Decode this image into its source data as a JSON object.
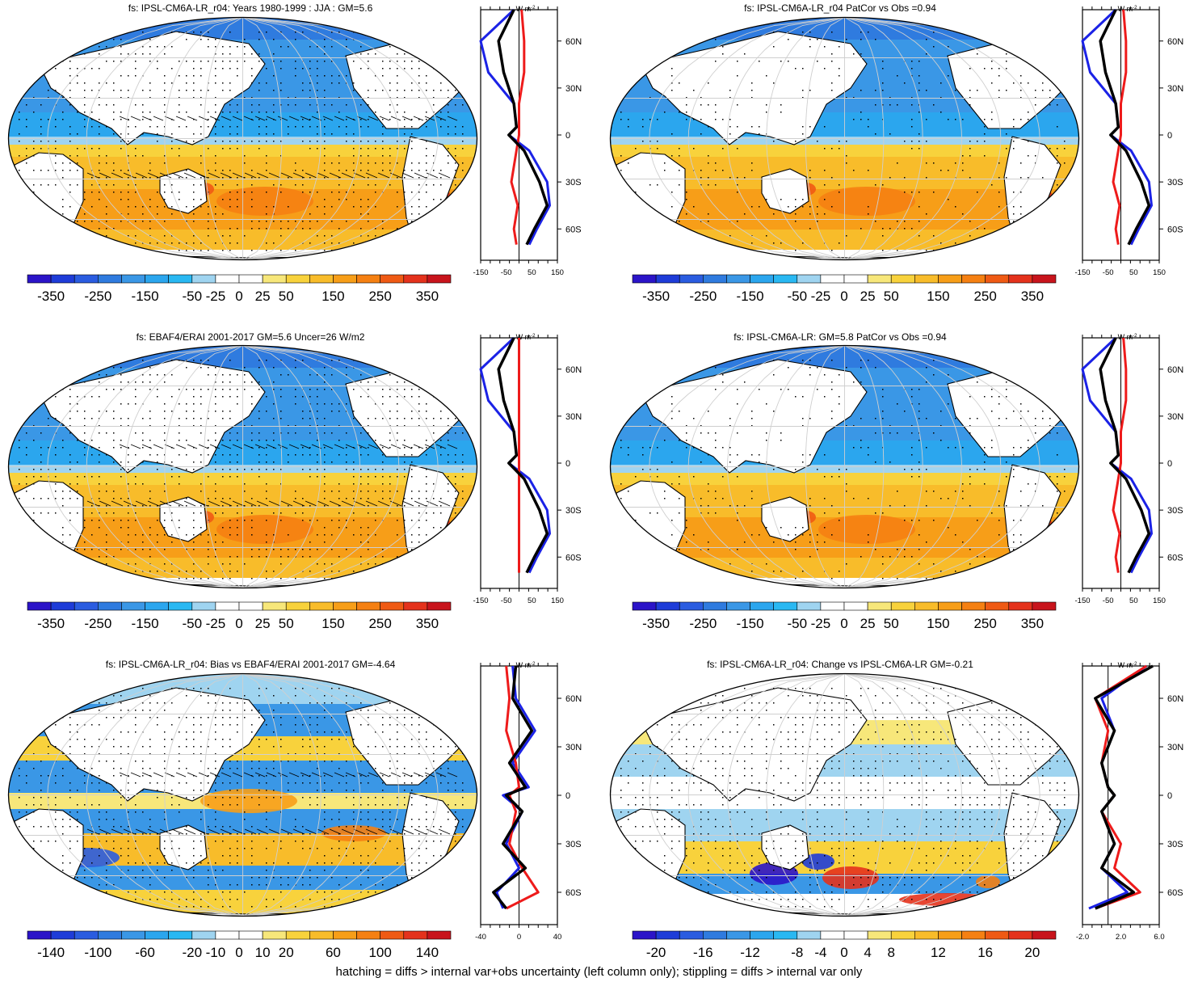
{
  "colors": {
    "div_14": [
      "#2b14c8",
      "#1e3cd8",
      "#2a5ce0",
      "#2f7bdf",
      "#3a97e6",
      "#2ba6ee",
      "#29b8f2",
      "#9fd4f0",
      "#ffffff",
      "#ffffff",
      "#f7e77a",
      "#f8d23c",
      "#f8bc2a",
      "#f79e18",
      "#f58012",
      "#ef5a14",
      "#e4321c",
      "#c8141c"
    ],
    "ocean_cold": "#3a97e6",
    "ocean_warm": "#f8bc2a",
    "land": "#ffffff",
    "profile_model": "#000000",
    "profile_obs": "#1b22e6",
    "profile_diff": "#ee1b1b"
  },
  "panels": [
    {
      "id": "p1",
      "title": "fs: IPSL-CM6A-LR_r04: Years 1980-1999 : JJA : GM=5.6",
      "colorbar_labels": [
        "-350",
        "-250",
        "-150",
        "-50",
        "-25",
        "0",
        "25",
        "50",
        "150",
        "250",
        "350"
      ],
      "profile_xticks": [
        "-150",
        "-50",
        "50",
        "150"
      ],
      "profile_units": "W m-2",
      "profile_units_base": "W m",
      "profile_units_exp": "-2",
      "lat_ticks": [
        "60N",
        "30N",
        "0",
        "30S",
        "60S"
      ]
    },
    {
      "id": "p2",
      "title": "fs: IPSL-CM6A-LR_r04 PatCor vs Obs =0.94",
      "colorbar_labels": [
        "-350",
        "-250",
        "-150",
        "-50",
        "-25",
        "0",
        "25",
        "50",
        "150",
        "250",
        "350"
      ],
      "profile_xticks": [
        "-150",
        "-50",
        "50",
        "150"
      ],
      "profile_units_base": "W m",
      "profile_units_exp": "-2",
      "lat_ticks": [
        "60N",
        "30N",
        "0",
        "30S",
        "60S"
      ]
    },
    {
      "id": "p3",
      "title": "fs: EBAF4/ERAI 2001-2017 GM=5.6 Uncer=26 W/m2",
      "colorbar_labels": [
        "-350",
        "-250",
        "-150",
        "-50",
        "-25",
        "0",
        "25",
        "50",
        "150",
        "250",
        "350"
      ],
      "profile_xticks": [
        "-150",
        "-50",
        "50",
        "150"
      ],
      "profile_units_base": "W m",
      "profile_units_exp": "-2",
      "lat_ticks": [
        "60N",
        "30N",
        "0",
        "30S",
        "60S"
      ]
    },
    {
      "id": "p4",
      "title": "fs: IPSL-CM6A-LR: GM=5.8 PatCor vs Obs =0.94",
      "colorbar_labels": [
        "-350",
        "-250",
        "-150",
        "-50",
        "-25",
        "0",
        "25",
        "50",
        "150",
        "250",
        "350"
      ],
      "profile_xticks": [
        "-150",
        "-50",
        "50",
        "150"
      ],
      "profile_units_base": "W m",
      "profile_units_exp": "-2",
      "lat_ticks": [
        "60N",
        "30N",
        "0",
        "30S",
        "60S"
      ]
    },
    {
      "id": "p5",
      "title": "fs: IPSL-CM6A-LR_r04: Bias vs EBAF4/ERAI 2001-2017 GM=-4.64",
      "colorbar_labels": [
        "-140",
        "-100",
        "-60",
        "-20",
        "-10",
        "0",
        "10",
        "20",
        "60",
        "100",
        "140"
      ],
      "profile_xticks": [
        "-40",
        "0",
        "40"
      ],
      "profile_units_base": "W m",
      "profile_units_exp": "-2",
      "lat_ticks": [
        "60N",
        "30N",
        "0",
        "30S",
        "60S"
      ]
    },
    {
      "id": "p6",
      "title": "fs: IPSL-CM6A-LR_r04: Change vs IPSL-CM6A-LR GM=-0.21",
      "colorbar_labels": [
        "-20",
        "-16",
        "-12",
        "-8",
        "-4",
        "0",
        "4",
        "8",
        "12",
        "16",
        "20"
      ],
      "profile_xticks": [
        "-2.0",
        "2.0",
        "6.0"
      ],
      "profile_units_base": "W m",
      "profile_units_exp": "-2",
      "lat_ticks": [
        "60N",
        "30N",
        "0",
        "30S",
        "60S"
      ]
    }
  ],
  "footer": "hatching = diffs > internal var+obs uncertainty (left column only); stippling = diffs > internal var only",
  "chart_data": [
    {
      "type": "heatmap",
      "title": "fs: IPSL-CM6A-LR_r04: Years 1980-1999 : JJA : GM=5.6",
      "colorbar": [
        -350,
        -250,
        -150,
        -50,
        -25,
        0,
        25,
        50,
        150,
        250,
        350
      ],
      "zonal_profile": {
        "lat": [
          80,
          60,
          40,
          20,
          5,
          0,
          -10,
          -30,
          -45,
          -60,
          -70
        ],
        "model": [
          -20,
          -80,
          -60,
          -20,
          -10,
          -40,
          20,
          80,
          110,
          60,
          30
        ],
        "obs": [
          -20,
          -150,
          -120,
          -20,
          -10,
          -40,
          40,
          110,
          120,
          70,
          40
        ],
        "diff": [
          10,
          20,
          20,
          0,
          0,
          0,
          -10,
          -30,
          -5,
          -20,
          -10
        ]
      }
    },
    {
      "type": "heatmap",
      "title": "fs: IPSL-CM6A-LR_r04 PatCor vs Obs =0.94",
      "colorbar": [
        -350,
        -250,
        -150,
        -50,
        -25,
        0,
        25,
        50,
        150,
        250,
        350
      ]
    },
    {
      "type": "heatmap",
      "title": "fs: EBAF4/ERAI 2001-2017 GM=5.6 Uncer=26 W/m2",
      "colorbar": [
        -350,
        -250,
        -150,
        -50,
        -25,
        0,
        25,
        50,
        150,
        250,
        350
      ]
    },
    {
      "type": "heatmap",
      "title": "fs: IPSL-CM6A-LR: GM=5.8 PatCor vs Obs =0.94",
      "colorbar": [
        -350,
        -250,
        -150,
        -50,
        -25,
        0,
        25,
        50,
        150,
        250,
        350
      ]
    },
    {
      "type": "heatmap",
      "title": "fs: IPSL-CM6A-LR_r04: Bias vs EBAF4/ERAI 2001-2017 GM=-4.64",
      "colorbar": [
        -140,
        -100,
        -60,
        -20,
        -10,
        0,
        10,
        20,
        60,
        100,
        140
      ]
    },
    {
      "type": "heatmap",
      "title": "fs: IPSL-CM6A-LR_r04: Change vs IPSL-CM6A-LR GM=-0.21",
      "colorbar": [
        -20,
        -16,
        -12,
        -8,
        -4,
        0,
        4,
        8,
        12,
        16,
        20
      ]
    }
  ]
}
